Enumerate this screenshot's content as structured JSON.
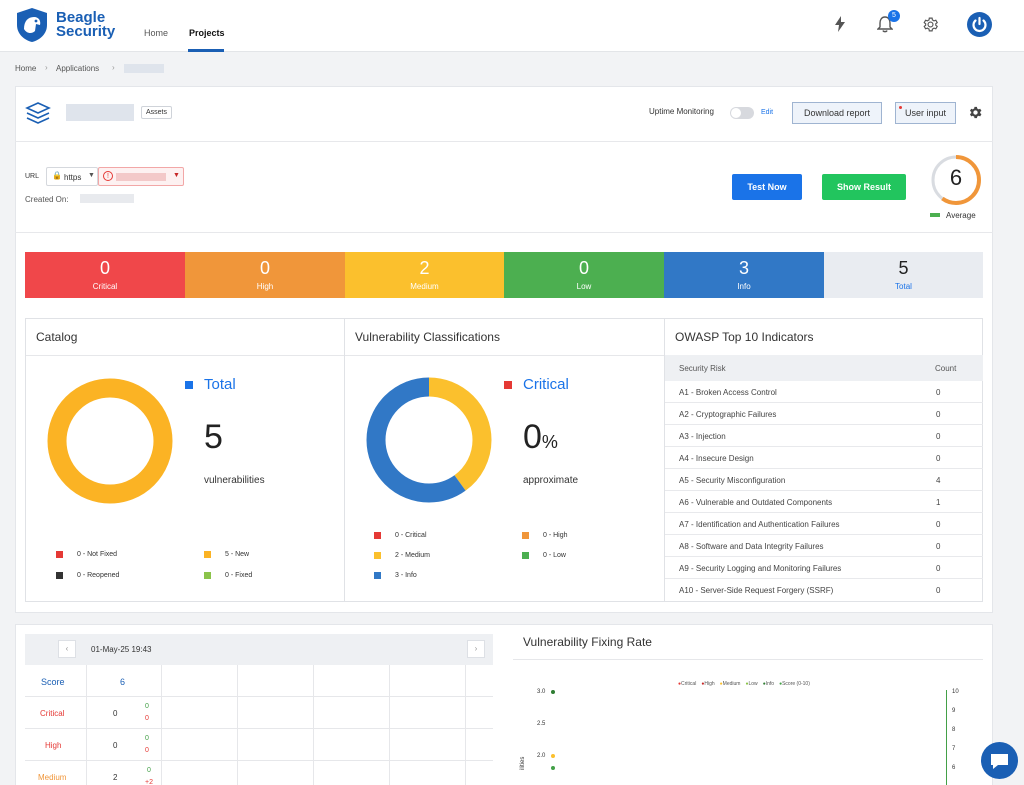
{
  "brand": {
    "line1": "Beagle",
    "line2": "Security"
  },
  "nav": {
    "home": "Home",
    "projects": "Projects"
  },
  "notifications": {
    "count": "5"
  },
  "breadcrumb": {
    "home": "Home",
    "applications": "Applications"
  },
  "app": {
    "assets_badge": "Assets",
    "uptime_label": "Uptime Monitoring",
    "uptime_edit": "Edit",
    "download_report": "Download report",
    "user_input": "User input",
    "url_label": "URL",
    "protocol": "https",
    "created_on_label": "Created On:",
    "test_now": "Test Now",
    "show_result": "Show Result",
    "score": "6",
    "score_label": "Average",
    "score_fraction": 0.6
  },
  "severity": [
    {
      "count": "0",
      "label": "Critical",
      "color": "#f0474a"
    },
    {
      "count": "0",
      "label": "High",
      "color": "#f0963a"
    },
    {
      "count": "2",
      "label": "Medium",
      "color": "#fbc02d"
    },
    {
      "count": "0",
      "label": "Low",
      "color": "#4caf50"
    },
    {
      "count": "3",
      "label": "Info",
      "color": "#3178c6"
    },
    {
      "count": "5",
      "label": "Total",
      "color": "#e9ecf1"
    }
  ],
  "catalog": {
    "title": "Catalog",
    "legend_title": "Total",
    "value": "5",
    "caption": "vulnerabilities",
    "legend": [
      {
        "label": "0 - Not Fixed",
        "color": "#e53935"
      },
      {
        "label": "5 - New",
        "color": "#fbb324"
      },
      {
        "label": "0 - Reopened",
        "color": "#333333"
      },
      {
        "label": "0 - Fixed",
        "color": "#8bc34a"
      }
    ]
  },
  "classifications": {
    "title": "Vulnerability Classifications",
    "legend_title": "Critical",
    "value": "0",
    "unit": "%",
    "caption": "approximate",
    "legend": [
      {
        "label": "0 - Critical",
        "color": "#e53935"
      },
      {
        "label": "0 - High",
        "color": "#f0963a"
      },
      {
        "label": "2 - Medium",
        "color": "#fbc02d"
      },
      {
        "label": "0 - Low",
        "color": "#4caf50"
      },
      {
        "label": "3 - Info",
        "color": "#3178c6"
      }
    ]
  },
  "owasp": {
    "title": "OWASP Top 10 Indicators",
    "col_risk": "Security Risk",
    "col_count": "Count",
    "rows": [
      {
        "name": "A1 - Broken Access Control",
        "count": "0"
      },
      {
        "name": "A2 - Cryptographic Failures",
        "count": "0"
      },
      {
        "name": "A3 - Injection",
        "count": "0"
      },
      {
        "name": "A4 - Insecure Design",
        "count": "0"
      },
      {
        "name": "A5 - Security Misconfiguration",
        "count": "4"
      },
      {
        "name": "A6 - Vulnerable and Outdated Components",
        "count": "1"
      },
      {
        "name": "A7 - Identification and Authentication Failures",
        "count": "0"
      },
      {
        "name": "A8 - Software and Data Integrity Failures",
        "count": "0"
      },
      {
        "name": "A9 - Security Logging and Monitoring Failures",
        "count": "0"
      },
      {
        "name": "A10 - Server-Side Request Forgery (SSRF)",
        "count": "0"
      }
    ]
  },
  "scorecard": {
    "date": "01-May-25 19:43",
    "rows": [
      {
        "label": "Score",
        "value": "6",
        "color": "#1a5fb4"
      },
      {
        "label": "Critical",
        "value": "0",
        "up": "0",
        "down": "0",
        "color": "#e53935"
      },
      {
        "label": "High",
        "value": "0",
        "up": "0",
        "down": "0",
        "color": "#e53935"
      },
      {
        "label": "Medium",
        "value": "2",
        "up": "0",
        "down": "+2",
        "color": "#f0963a"
      }
    ]
  },
  "fixing_rate": {
    "title": "Vulnerability Fixing Rate",
    "legend": [
      "Critical",
      "High",
      "Medium",
      "Low",
      "Info",
      "Score (0-10)"
    ],
    "legend_colors": [
      "#e53935",
      "#c62828",
      "#fbc02d",
      "#8bc34a",
      "#2e7d32",
      "#43a047"
    ],
    "y_ticks": [
      "3.0",
      "2.5",
      "2.0"
    ],
    "y2_ticks": [
      "10",
      "9",
      "8",
      "7",
      "6"
    ],
    "ylabel_partial": "ilities"
  },
  "chart_data": {
    "type": "scatter",
    "title": "Vulnerability Fixing Rate",
    "xlabel": "",
    "ylabel": "",
    "ylim_visible": [
      2.0,
      3.0
    ],
    "y2lim_visible": [
      6,
      10
    ],
    "series": [
      {
        "name": "Medium",
        "values": [
          2
        ],
        "color": "#fbc02d"
      },
      {
        "name": "Info",
        "values": [
          3
        ],
        "color": "#2e7d32"
      },
      {
        "name": "Score (0-10)",
        "values": [
          6
        ],
        "color": "#43a047"
      }
    ]
  }
}
